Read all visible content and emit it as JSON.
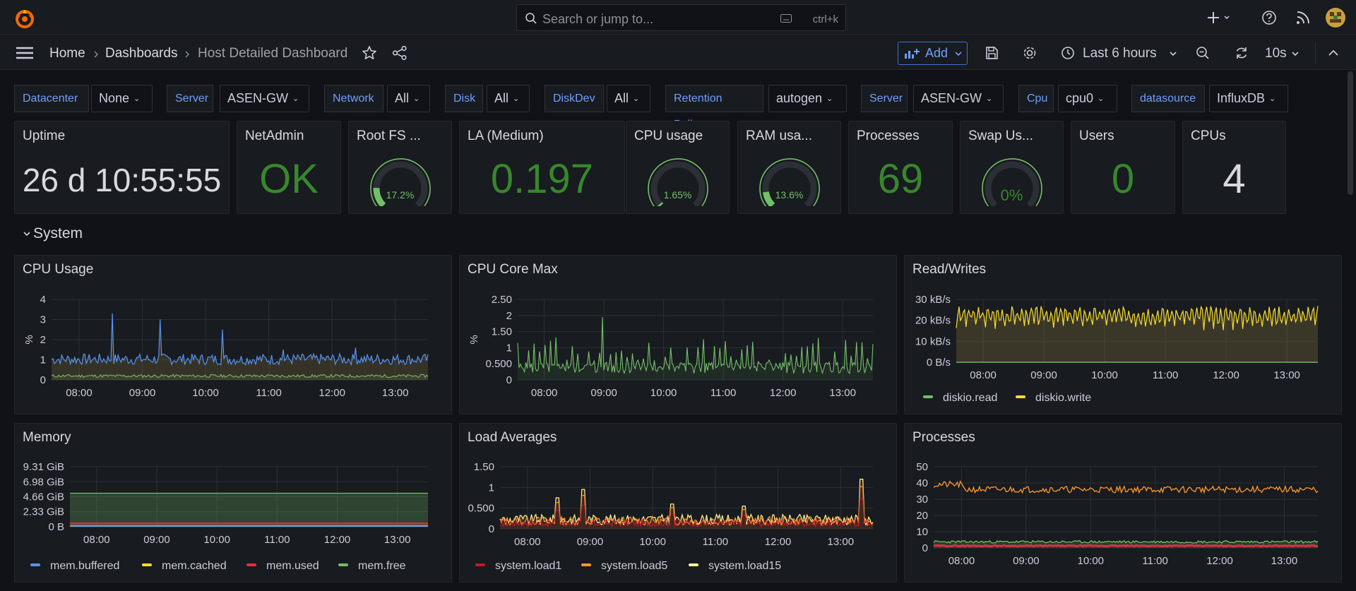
{
  "topbar": {
    "search_placeholder": "Search or jump to...",
    "search_shortcut": "ctrl+k"
  },
  "nav": {
    "breadcrumb": [
      "Home",
      "Dashboards",
      "Host Detailed Dashboard"
    ],
    "add_label": "Add",
    "time_range": "Last 6 hours",
    "refresh": "10s"
  },
  "variables": [
    {
      "label": "Datacenter",
      "value": "None"
    },
    {
      "label": "Server",
      "value": "ASEN-GW"
    },
    {
      "label": "Network",
      "value": "All"
    },
    {
      "label": "Disk",
      "value": "All"
    },
    {
      "label": "DiskDev",
      "value": "All"
    },
    {
      "label": "Retention Policy",
      "value": "autogen"
    },
    {
      "label": "Server",
      "value": "ASEN-GW"
    },
    {
      "label": "Cpu",
      "value": "cpu0"
    },
    {
      "label": "datasource",
      "value": "InfluxDB"
    }
  ],
  "stats": {
    "uptime": {
      "title": "Uptime",
      "value": "26 d 10:55:55"
    },
    "netadmin": {
      "title": "NetAdmin",
      "value": "OK"
    },
    "rootfs": {
      "title": "Root FS ...",
      "value": "17.2%",
      "fraction": 0.172
    },
    "la": {
      "title": "LA (Medium)",
      "value": "0.197"
    },
    "cpu": {
      "title": "CPU usage",
      "value": "1.65%",
      "fraction": 0.0165
    },
    "ram": {
      "title": "RAM usa...",
      "value": "13.6%",
      "fraction": 0.136
    },
    "processes": {
      "title": "Processes",
      "value": "69"
    },
    "swap": {
      "title": "Swap Us...",
      "value": "0%",
      "fraction": 0
    },
    "users": {
      "title": "Users",
      "value": "0"
    },
    "cpus": {
      "title": "CPUs",
      "value": "4"
    }
  },
  "colors": {
    "green": "#73bf69",
    "stat_green": "#37872d",
    "blue": "#5794f2",
    "yellow": "#fade2a",
    "orange": "#ff9830",
    "red": "#f2495c",
    "light_yellow": "#fff899",
    "dark_red": "#c4162a"
  },
  "section": {
    "title": "System"
  },
  "x_ticks": [
    "08:00",
    "09:00",
    "10:00",
    "11:00",
    "12:00",
    "13:00"
  ],
  "panels": {
    "cpu_usage": {
      "title": "CPU Usage",
      "ylabel": "%",
      "y_ticks": [
        "4",
        "3",
        "2",
        "1",
        "0"
      ]
    },
    "cpu_core_max": {
      "title": "CPU Core Max",
      "ylabel": "%",
      "y_ticks": [
        "2.50",
        "2",
        "1.50",
        "1",
        "0.500",
        "0"
      ]
    },
    "read_writes": {
      "title": "Read/Writes",
      "y_ticks": [
        "30 kB/s",
        "20 kB/s",
        "10 kB/s",
        "0 B/s"
      ],
      "legend": [
        "diskio.read",
        "diskio.write"
      ]
    },
    "memory": {
      "title": "Memory",
      "y_ticks": [
        "9.31 GiB",
        "6.98 GiB",
        "4.66 GiB",
        "2.33 GiB",
        "0 B"
      ],
      "legend": [
        "mem.buffered",
        "mem.cached",
        "mem.used",
        "mem.free"
      ]
    },
    "load_averages": {
      "title": "Load Averages",
      "y_ticks": [
        "1.50",
        "1",
        "0.500",
        "0"
      ],
      "legend": [
        "system.load1",
        "system.load5",
        "system.load15"
      ]
    },
    "processes": {
      "title": "Processes",
      "y_ticks": [
        "50",
        "40",
        "30",
        "20",
        "10",
        "0"
      ]
    }
  }
}
